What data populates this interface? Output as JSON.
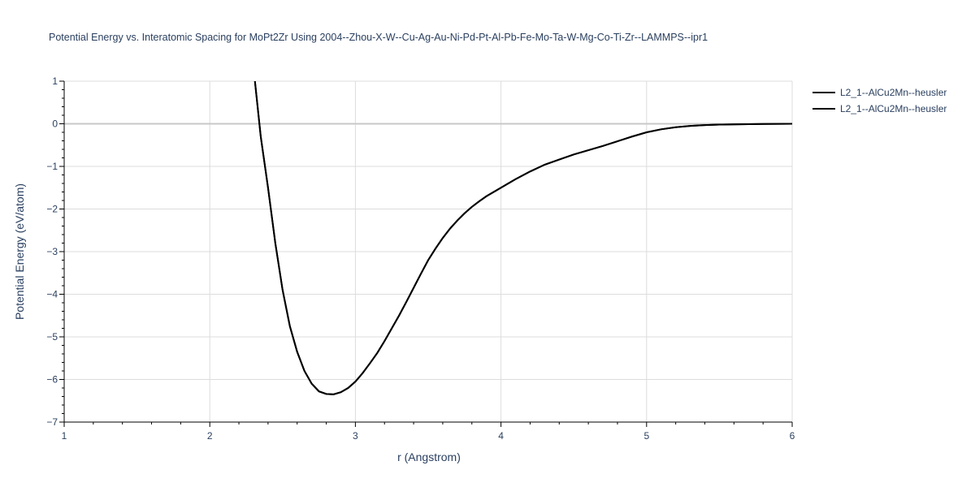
{
  "chart_data": {
    "type": "line",
    "title": "Potential Energy vs. Interatomic Spacing for MoPt2Zr Using 2004--Zhou-X-W--Cu-Ag-Au-Ni-Pd-Pt-Al-Pb-Fe-Mo-Ta-W-Mg-Co-Ti-Zr--LAMMPS--ipr1",
    "xlabel": "r (Angstrom)",
    "ylabel": "Potential Energy (eV/atom)",
    "xlim": [
      1,
      6
    ],
    "ylim": [
      -7,
      1
    ],
    "xticks": [
      "1",
      "2",
      "3",
      "4",
      "5",
      "6"
    ],
    "yticks": [
      "1",
      "0",
      "−1",
      "−2",
      "−3",
      "−4",
      "−5",
      "−6",
      "−7"
    ],
    "grid": true,
    "legend_position": "top-right",
    "line_color": "#000000",
    "series": [
      {
        "name": "L2_1--AlCu2Mn--heusler",
        "x": [
          2.31,
          2.35,
          2.4,
          2.45,
          2.5,
          2.55,
          2.6,
          2.65,
          2.7,
          2.75,
          2.8,
          2.85,
          2.9,
          2.95,
          3.0,
          3.05,
          3.1,
          3.15,
          3.2,
          3.25,
          3.3,
          3.35,
          3.4,
          3.45,
          3.5,
          3.55,
          3.6,
          3.65,
          3.7,
          3.75,
          3.8,
          3.85,
          3.9,
          3.95,
          4.0,
          4.1,
          4.2,
          4.3,
          4.4,
          4.5,
          4.6,
          4.7,
          4.8,
          4.9,
          5.0,
          5.1,
          5.2,
          5.3,
          5.4,
          5.5,
          5.6,
          5.7,
          5.8,
          5.9,
          6.0
        ],
        "y": [
          1.0,
          -0.3,
          -1.5,
          -2.8,
          -3.9,
          -4.75,
          -5.35,
          -5.8,
          -6.1,
          -6.28,
          -6.34,
          -6.35,
          -6.3,
          -6.2,
          -6.05,
          -5.85,
          -5.62,
          -5.38,
          -5.1,
          -4.8,
          -4.5,
          -4.18,
          -3.85,
          -3.52,
          -3.2,
          -2.93,
          -2.68,
          -2.46,
          -2.27,
          -2.1,
          -1.95,
          -1.82,
          -1.7,
          -1.6,
          -1.5,
          -1.3,
          -1.12,
          -0.96,
          -0.84,
          -0.72,
          -0.62,
          -0.52,
          -0.41,
          -0.3,
          -0.2,
          -0.13,
          -0.08,
          -0.05,
          -0.03,
          -0.02,
          -0.015,
          -0.01,
          -0.005,
          -0.002,
          0.0
        ]
      },
      {
        "name": "L2_1--AlCu2Mn--heusler",
        "x": [
          2.31,
          2.35,
          2.4,
          2.45,
          2.5,
          2.55,
          2.6,
          2.65,
          2.7,
          2.75,
          2.8,
          2.85,
          2.9,
          2.95,
          3.0,
          3.05,
          3.1,
          3.15,
          3.2,
          3.25,
          3.3,
          3.35,
          3.4,
          3.45,
          3.5,
          3.55,
          3.6,
          3.65,
          3.7,
          3.75,
          3.8,
          3.85,
          3.9,
          3.95,
          4.0,
          4.1,
          4.2,
          4.3,
          4.4,
          4.5,
          4.6,
          4.7,
          4.8,
          4.9,
          5.0,
          5.1,
          5.2,
          5.3,
          5.4,
          5.5,
          5.6,
          5.7,
          5.8,
          5.9,
          6.0
        ],
        "y": [
          1.0,
          -0.3,
          -1.5,
          -2.8,
          -3.9,
          -4.75,
          -5.35,
          -5.8,
          -6.1,
          -6.28,
          -6.34,
          -6.35,
          -6.3,
          -6.2,
          -6.05,
          -5.85,
          -5.62,
          -5.38,
          -5.1,
          -4.8,
          -4.5,
          -4.18,
          -3.85,
          -3.52,
          -3.2,
          -2.93,
          -2.68,
          -2.46,
          -2.27,
          -2.1,
          -1.95,
          -1.82,
          -1.7,
          -1.6,
          -1.5,
          -1.3,
          -1.12,
          -0.96,
          -0.84,
          -0.72,
          -0.62,
          -0.52,
          -0.41,
          -0.3,
          -0.2,
          -0.13,
          -0.08,
          -0.05,
          -0.03,
          -0.02,
          -0.015,
          -0.01,
          -0.005,
          -0.002,
          0.0
        ]
      }
    ]
  }
}
